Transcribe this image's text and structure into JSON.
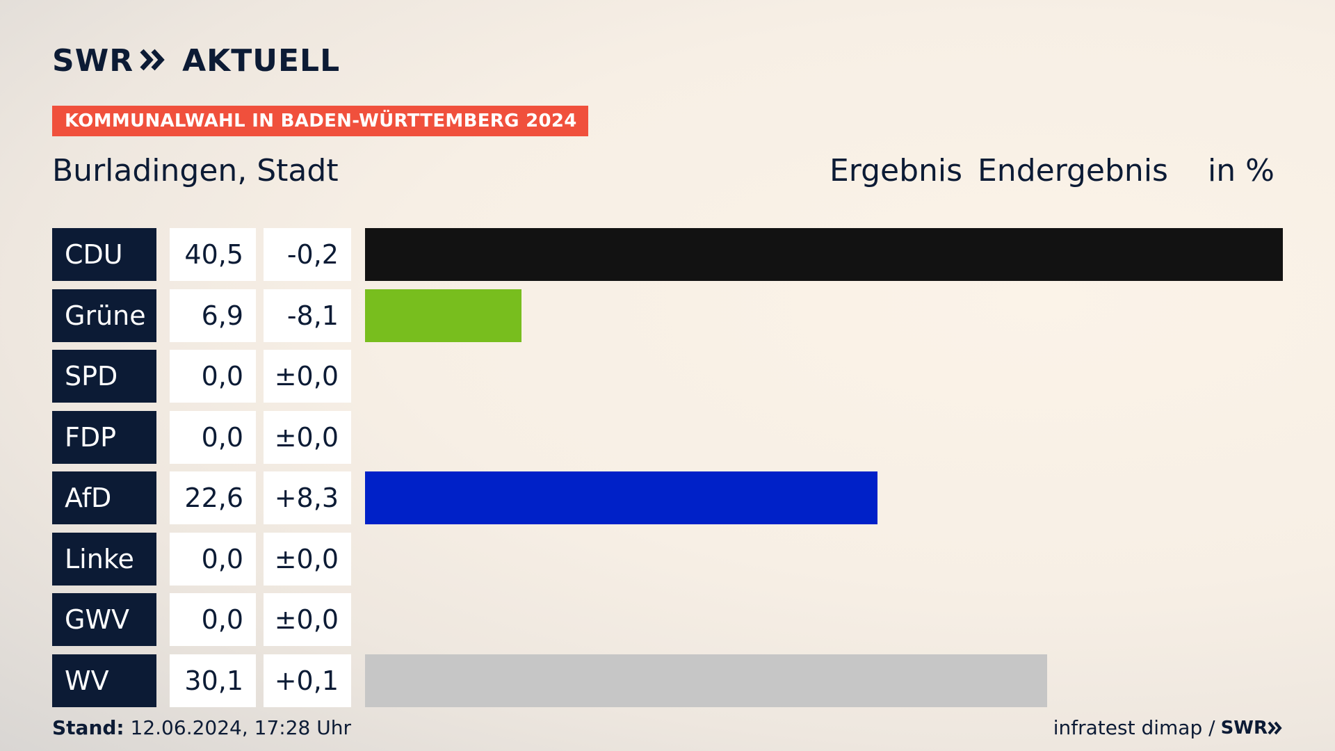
{
  "header": {
    "logo_swr": "SWR",
    "logo_aktuell": "AKTUELL",
    "banner": "KOMMUNALWAHL IN BADEN-WÜRTTEMBERG 2024",
    "place": "Burladingen, Stadt",
    "col_ergebnis": "Ergebnis",
    "col_endergebnis": "Endergebnis",
    "col_unit": "in %"
  },
  "chart_data": {
    "type": "bar",
    "categories": [
      "CDU",
      "Grüne",
      "SPD",
      "FDP",
      "AfD",
      "Linke",
      "GWV",
      "WV"
    ],
    "values": [
      40.5,
      6.9,
      0.0,
      0.0,
      22.6,
      0.0,
      0.0,
      30.1
    ],
    "value_labels": [
      "40,5",
      "6,9",
      "0,0",
      "0,0",
      "22,6",
      "0,0",
      "0,0",
      "30,1"
    ],
    "diff_labels": [
      "-0,2",
      "-8,1",
      "±0,0",
      "±0,0",
      "+8,3",
      "±0,0",
      "±0,0",
      "+0,1"
    ],
    "colors": [
      "#121212",
      "#78be1e",
      "#e3000f",
      "#ffe600",
      "#0021c8",
      "#be3075",
      "#8a8a8a",
      "#c6c6c6"
    ],
    "xlim": [
      0,
      40.5
    ],
    "orientation": "horizontal",
    "grid": false,
    "legend": "none"
  },
  "footer": {
    "stand_label": "Stand:",
    "stand_value": "12.06.2024, 17:28 Uhr",
    "source": "infratest dimap /",
    "source_logo": "SWR"
  }
}
